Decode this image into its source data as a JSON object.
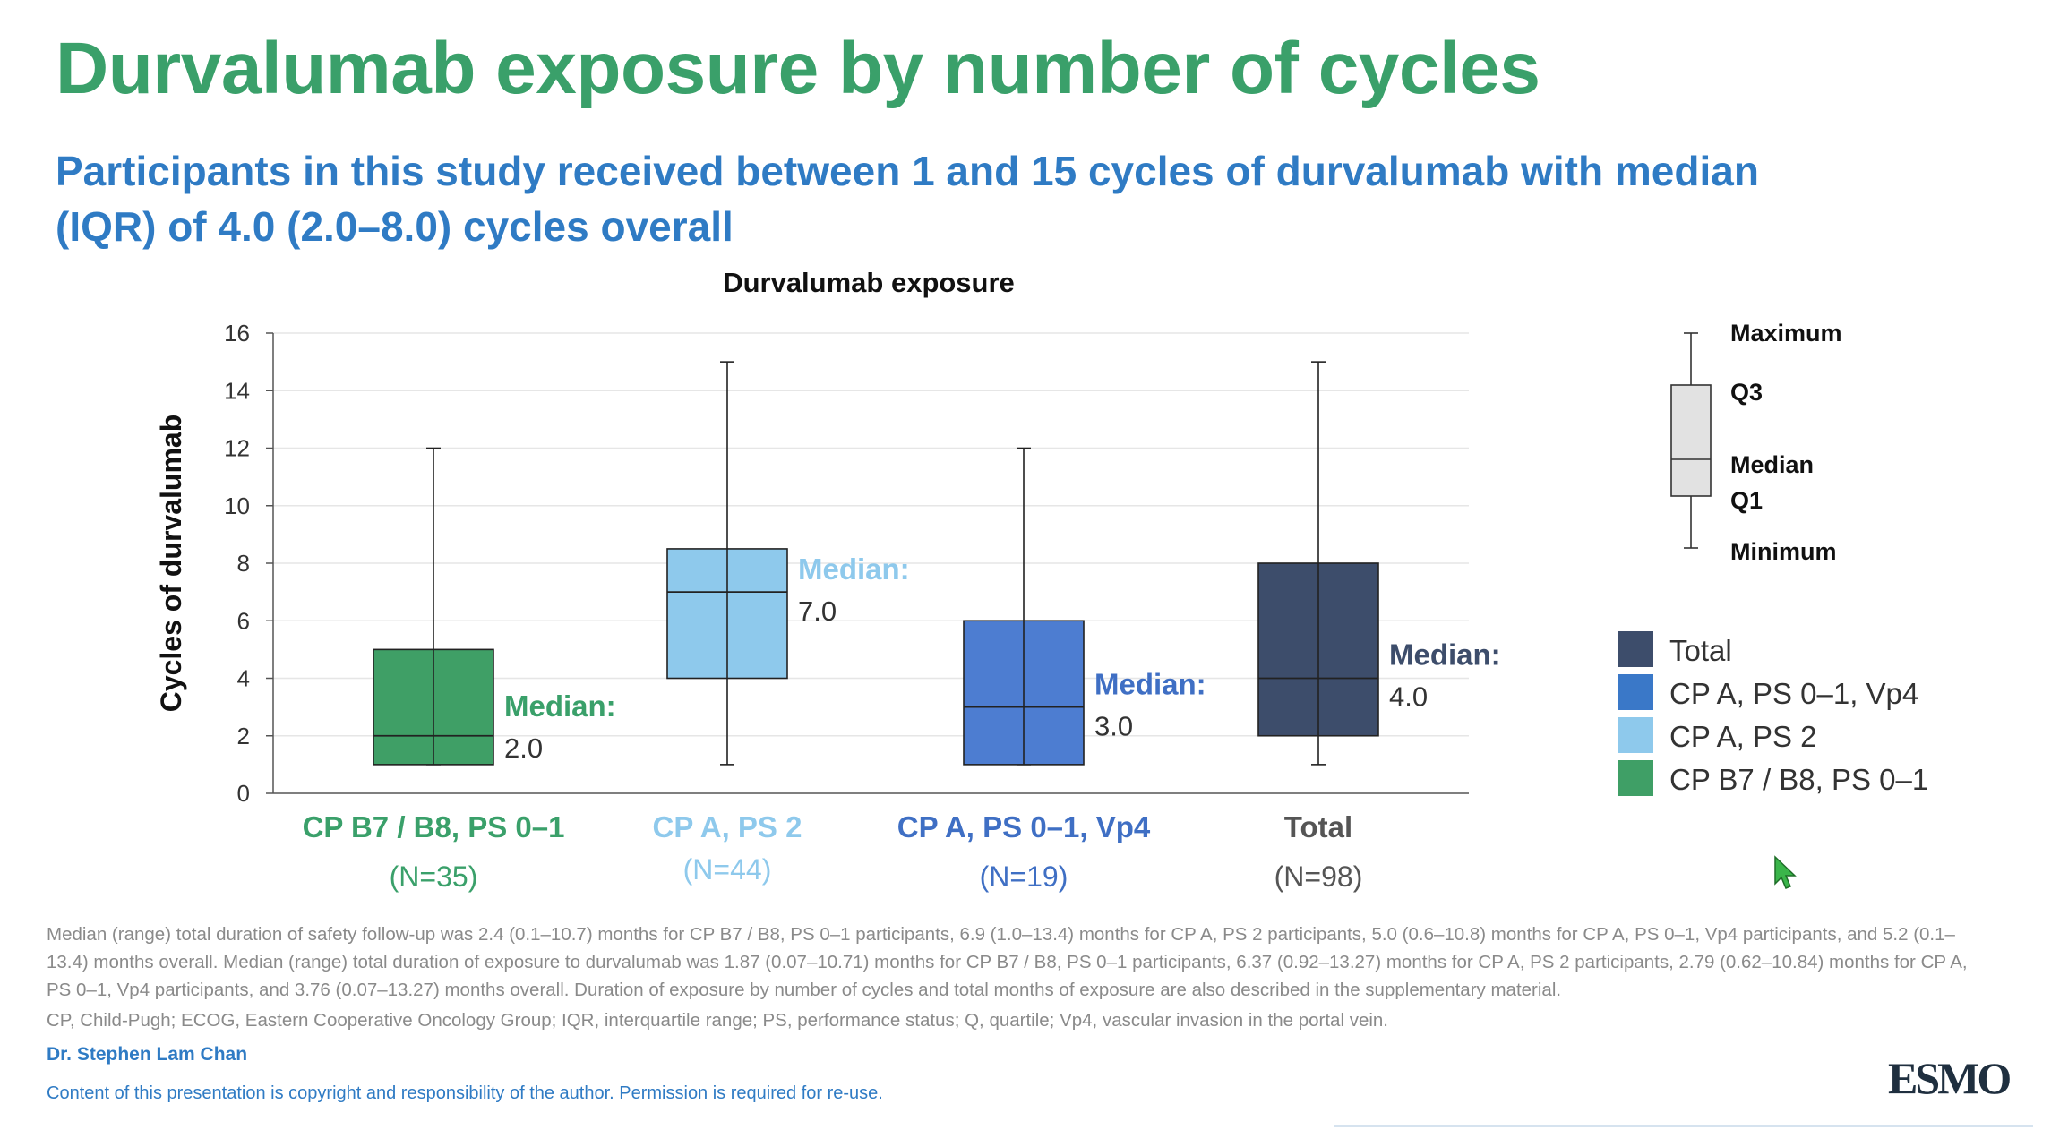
{
  "slide": {
    "title": "Durvalumab exposure by number of cycles",
    "subtitle": "Participants in this study received between 1 and 15 cycles of durvalumab with median (IQR) of 4.0 (2.0–8.0) cycles overall",
    "footnote": "Median (range) total duration of safety follow-up was 2.4 (0.1–10.7) months for CP B7 / B8, PS 0–1 participants, 6.9 (1.0–13.4) months for CP A, PS 2 participants, 5.0 (0.6–10.8) months for CP A, PS 0–1, Vp4 participants, and 5.2 (0.1–13.4) months overall. Median (range) total duration of exposure to durvalumab was 1.87 (0.07–10.71) months for CP B7 / B8, PS 0–1 participants, 6.37 (0.92–13.27) months for CP A, PS 2 participants, 2.79 (0.62–10.84) months for CP A, PS 0–1, Vp4 participants, and 3.76 (0.07–13.27) months overall. Duration of exposure by number of cycles and total months of exposure are also described in the supplementary material.",
    "abbreviations": "CP, Child-Pugh; ECOG, Eastern Cooperative Oncology Group; IQR, interquartile range; PS, performance status; Q, quartile; Vp4, vascular invasion in the portal vein.",
    "presenter": "Dr. Stephen Lam Chan",
    "copyright": "Content of this presentation is copyright and responsibility of the author. Permission is required for re-use.",
    "logo": "ESMO"
  },
  "chart_data": {
    "type": "box",
    "title": "Durvalumab exposure",
    "ylabel": "Cycles of durvalumab",
    "ylim": [
      0,
      16
    ],
    "yticks": [
      0,
      2,
      4,
      6,
      8,
      10,
      12,
      14,
      16
    ],
    "grid": true,
    "median_label": "Median:",
    "groups": [
      {
        "name": "CP B7 / B8, PS 0–1",
        "n": "(N=35)",
        "color": "#3f9f66",
        "min": 1,
        "q1": 1,
        "median": 2,
        "q3": 5,
        "max": 12,
        "median_text": "2.0"
      },
      {
        "name": "CP A, PS 2",
        "n": "(N=44)",
        "color": "#8ec9ec",
        "min": 1,
        "q1": 4,
        "median": 7,
        "q3": 8.5,
        "max": 15,
        "median_text": "7.0"
      },
      {
        "name": "CP A, PS 0–1, Vp4",
        "n": "(N=19)",
        "color": "#4d7dd1",
        "min": 1,
        "q1": 1,
        "median": 3,
        "q3": 6,
        "max": 12,
        "median_text": "3.0"
      },
      {
        "name": "Total",
        "n": "(N=98)",
        "color": "#3d4d6b",
        "min": 1,
        "q1": 2,
        "median": 4,
        "q3": 8,
        "max": 15,
        "median_text": "4.0"
      }
    ],
    "label_colors": [
      "#3aa06a",
      "#8ec9ec",
      "#3f6fc4",
      "#555555"
    ],
    "median_label_colors": [
      "#3aa06a",
      "#8ec9ec",
      "#3f6fc4",
      "#3d4d6b"
    ],
    "key": {
      "labels": [
        "Maximum",
        "Q3",
        "Median",
        "Q1",
        "Minimum"
      ]
    },
    "legend": {
      "placement": "right",
      "items": [
        {
          "label": "Total",
          "color": "#3d4d6b"
        },
        {
          "label": "CP A, PS 0–1, Vp4",
          "color": "#3a78c8"
        },
        {
          "label": "CP A, PS 2",
          "color": "#8ec9ec"
        },
        {
          "label": "CP B7 / B8, PS 0–1",
          "color": "#3f9f66"
        }
      ]
    }
  }
}
